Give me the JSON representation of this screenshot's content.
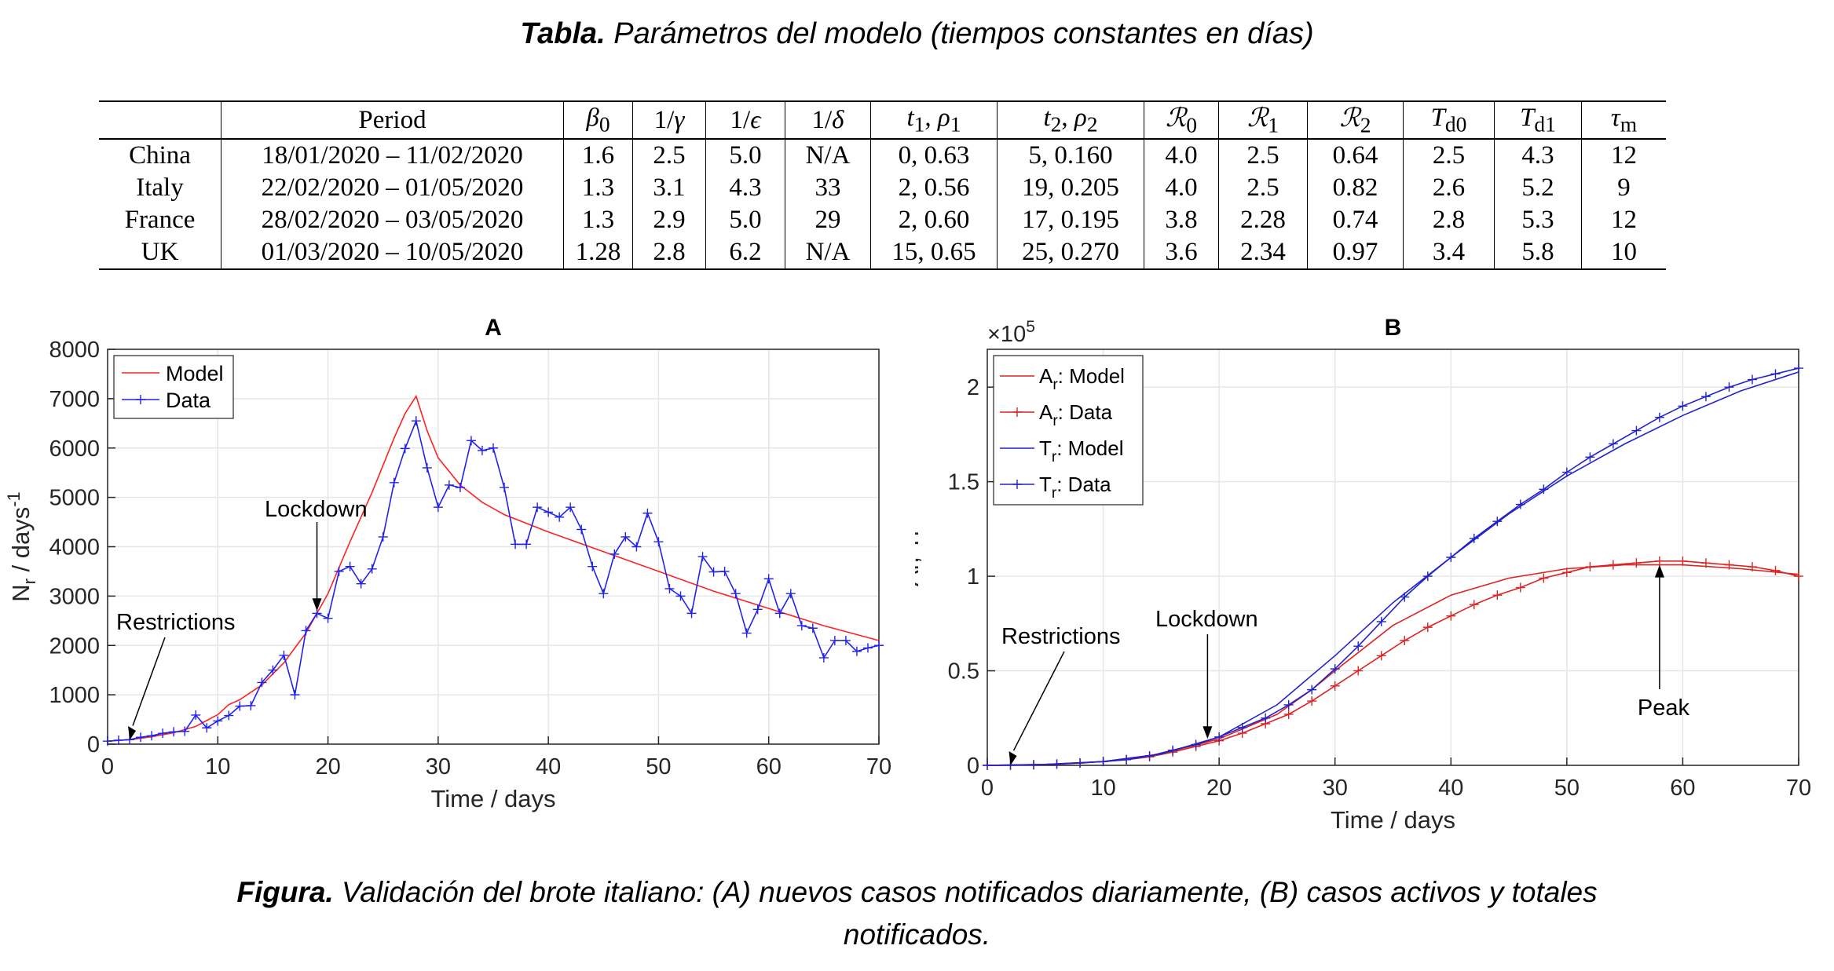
{
  "table_caption": {
    "bold": "Tabla.",
    "text": " Parámetros del modelo (tiempos constantes en días)"
  },
  "figure_caption": {
    "bold": "Figura.",
    "line1": " Validación del brote italiano: (A) nuevos casos notificados diariamente, (B) casos activos y totales",
    "line2": "notificados."
  },
  "table": {
    "headers": [
      "",
      "Period",
      "β0",
      "1/γ",
      "1/ϵ",
      "1/δ",
      "t1, ρ1",
      "t2, ρ2",
      "R0",
      "R1",
      "R2",
      "Td0",
      "Td1",
      "τm"
    ],
    "rows": [
      [
        "China",
        "18/01/2020 – 11/02/2020",
        "1.6",
        "2.5",
        "5.0",
        "N/A",
        "0, 0.63",
        "5, 0.160",
        "4.0",
        "2.5",
        "0.64",
        "2.5",
        "4.3",
        "12"
      ],
      [
        "Italy",
        "22/02/2020 – 01/05/2020",
        "1.3",
        "3.1",
        "4.3",
        "33",
        "2, 0.56",
        "19, 0.205",
        "4.0",
        "2.5",
        "0.82",
        "2.6",
        "5.2",
        "9"
      ],
      [
        "France",
        "28/02/2020 – 03/05/2020",
        "1.3",
        "2.9",
        "5.0",
        "29",
        "2, 0.60",
        "17, 0.195",
        "3.8",
        "2.28",
        "0.74",
        "2.8",
        "5.3",
        "12"
      ],
      [
        "UK",
        "01/03/2020 – 10/05/2020",
        "1.28",
        "2.8",
        "6.2",
        "N/A",
        "15, 0.65",
        "25, 0.270",
        "3.6",
        "2.34",
        "0.97",
        "3.4",
        "5.8",
        "10"
      ]
    ]
  },
  "colors": {
    "model_red": "#ff2222",
    "data_blue": "#2222ee",
    "grid": "#e6e6e6",
    "red": "#dd2222",
    "blue": "#2222cc"
  },
  "chart_data": [
    {
      "type": "line",
      "title": "A",
      "xlabel": "Time / days",
      "ylabel": "N_r / days^-1",
      "xlim": [
        0,
        70
      ],
      "ylim": [
        0,
        8000
      ],
      "xticks": [
        0,
        10,
        20,
        30,
        40,
        50,
        60,
        70
      ],
      "yticks": [
        0,
        1000,
        2000,
        3000,
        4000,
        5000,
        6000,
        7000,
        8000
      ],
      "grid": true,
      "legend_position": "top-left",
      "series": [
        {
          "name": "Model",
          "color": "#ff2222",
          "marker": "none",
          "x": [
            0,
            2,
            4,
            6,
            8,
            10,
            11,
            12,
            14,
            16,
            18,
            20,
            22,
            24,
            26,
            27,
            28,
            29,
            30,
            32,
            34,
            36,
            40,
            45,
            50,
            55,
            60,
            65,
            70
          ],
          "y": [
            60,
            90,
            150,
            230,
            360,
            600,
            800,
            900,
            1200,
            1650,
            2250,
            3050,
            4100,
            5100,
            6200,
            6700,
            7050,
            6350,
            5800,
            5250,
            4900,
            4650,
            4300,
            3900,
            3500,
            3100,
            2750,
            2400,
            2100
          ]
        },
        {
          "name": "Data",
          "color": "#2222ee",
          "marker": "plus",
          "x": [
            0,
            1,
            2,
            3,
            4,
            5,
            6,
            7,
            8,
            9,
            10,
            11,
            12,
            13,
            14,
            15,
            16,
            17,
            18,
            19,
            20,
            21,
            22,
            23,
            24,
            25,
            26,
            27,
            28,
            29,
            30,
            31,
            32,
            33,
            34,
            35,
            36,
            37,
            38,
            39,
            40,
            41,
            42,
            43,
            44,
            45,
            46,
            47,
            48,
            49,
            50,
            51,
            52,
            53,
            54,
            55,
            56,
            57,
            58,
            59,
            60,
            61,
            62,
            63,
            64,
            65,
            66,
            67,
            68,
            69,
            70
          ],
          "y": [
            60,
            80,
            90,
            140,
            170,
            220,
            250,
            260,
            590,
            330,
            470,
            580,
            770,
            780,
            1250,
            1500,
            1800,
            1000,
            2300,
            2650,
            2550,
            3500,
            3600,
            3250,
            3550,
            4200,
            5300,
            5990,
            6550,
            5600,
            4800,
            5250,
            5200,
            6150,
            5950,
            6000,
            5200,
            4050,
            4050,
            4800,
            4700,
            4600,
            4800,
            4350,
            3600,
            3050,
            3850,
            4200,
            4000,
            4680,
            4100,
            3150,
            3000,
            2650,
            3800,
            3490,
            3500,
            3050,
            2250,
            2730,
            3350,
            2650,
            3050,
            2400,
            2350,
            1750,
            2100,
            2100,
            1880,
            1950,
            2000
          ]
        }
      ],
      "annotations": [
        {
          "text": "Restrictions",
          "x": 2
        },
        {
          "text": "Lockdown",
          "x": 19
        }
      ]
    },
    {
      "type": "line",
      "title": "B",
      "xlabel": "Time / days",
      "ylabel": "Ar, Tr",
      "multiplier": "×10^5",
      "xlim": [
        0,
        70
      ],
      "ylim": [
        0,
        2.2
      ],
      "xticks": [
        0,
        10,
        20,
        30,
        40,
        50,
        60,
        70
      ],
      "yticks": [
        0,
        0.5,
        1,
        1.5,
        2
      ],
      "grid": true,
      "legend_position": "top-left",
      "series": [
        {
          "name": "A_r: Model",
          "color": "#dd2222",
          "marker": "none",
          "x": [
            0,
            5,
            10,
            15,
            20,
            25,
            28,
            30,
            35,
            40,
            45,
            50,
            55,
            60,
            65,
            70
          ],
          "y": [
            0,
            0.005,
            0.02,
            0.06,
            0.14,
            0.27,
            0.4,
            0.5,
            0.74,
            0.9,
            0.99,
            1.04,
            1.06,
            1.06,
            1.04,
            1.01
          ]
        },
        {
          "name": "A_r: Data",
          "color": "#dd2222",
          "marker": "plus",
          "x": [
            0,
            2,
            4,
            6,
            8,
            10,
            12,
            14,
            16,
            18,
            20,
            22,
            24,
            26,
            28,
            30,
            32,
            34,
            36,
            38,
            40,
            42,
            44,
            46,
            48,
            50,
            52,
            54,
            56,
            58,
            60,
            62,
            64,
            66,
            68,
            70
          ],
          "y": [
            0,
            0.001,
            0.003,
            0.006,
            0.012,
            0.02,
            0.03,
            0.045,
            0.07,
            0.1,
            0.13,
            0.17,
            0.22,
            0.27,
            0.34,
            0.42,
            0.5,
            0.58,
            0.66,
            0.73,
            0.79,
            0.85,
            0.9,
            0.94,
            0.99,
            1.02,
            1.05,
            1.06,
            1.07,
            1.08,
            1.08,
            1.07,
            1.06,
            1.05,
            1.03,
            1.0
          ]
        },
        {
          "name": "T_r: Model",
          "color": "#2222cc",
          "marker": "none",
          "x": [
            0,
            5,
            10,
            15,
            20,
            25,
            30,
            35,
            40,
            45,
            50,
            55,
            60,
            65,
            70
          ],
          "y": [
            0,
            0.005,
            0.02,
            0.06,
            0.15,
            0.32,
            0.58,
            0.86,
            1.1,
            1.33,
            1.53,
            1.7,
            1.85,
            1.98,
            2.08
          ]
        },
        {
          "name": "T_r: Data",
          "color": "#2222cc",
          "marker": "plus",
          "x": [
            0,
            2,
            4,
            6,
            8,
            10,
            12,
            14,
            16,
            18,
            20,
            22,
            24,
            26,
            28,
            30,
            32,
            34,
            36,
            38,
            40,
            42,
            44,
            46,
            48,
            50,
            52,
            54,
            56,
            58,
            60,
            62,
            64,
            66,
            68,
            70
          ],
          "y": [
            0,
            0.001,
            0.003,
            0.007,
            0.013,
            0.02,
            0.03,
            0.05,
            0.08,
            0.11,
            0.15,
            0.2,
            0.25,
            0.32,
            0.4,
            0.51,
            0.63,
            0.76,
            0.89,
            1.0,
            1.1,
            1.2,
            1.29,
            1.38,
            1.46,
            1.55,
            1.63,
            1.7,
            1.77,
            1.84,
            1.9,
            1.95,
            2.0,
            2.04,
            2.07,
            2.1
          ]
        }
      ],
      "annotations": [
        {
          "text": "Restrictions",
          "x": 2
        },
        {
          "text": "Lockdown",
          "x": 19
        },
        {
          "text": "Peak",
          "x": 58
        }
      ]
    }
  ]
}
